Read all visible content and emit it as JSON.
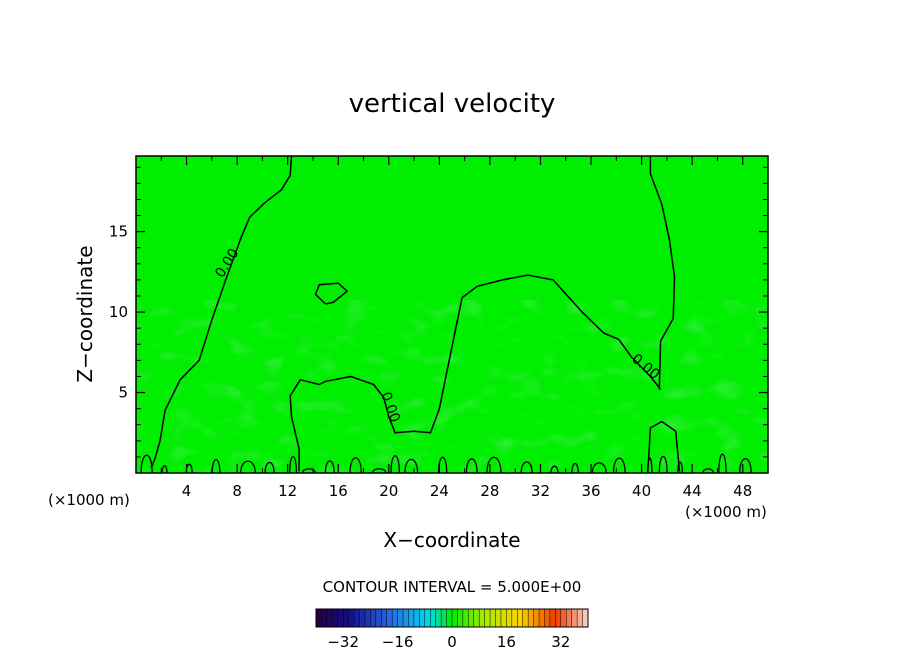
{
  "chart_data": {
    "type": "contour",
    "title": "vertical velocity",
    "xlabel": "X−coordinate",
    "ylabel": "Z−coordinate",
    "x_unit_label": "(×1000 m)",
    "x_unit_label_right": "(×1000 m)",
    "xlim": [
      0,
      50
    ],
    "ylim": [
      0,
      19.7
    ],
    "x_ticks": [
      4,
      8,
      12,
      16,
      20,
      24,
      28,
      32,
      36,
      40,
      44,
      48
    ],
    "y_ticks": [
      5,
      10,
      15
    ],
    "field_color": "#00ee00",
    "contour_levels": [
      {
        "label": "0.00",
        "paths": [
          [
            [
              12.3,
              19.7
            ],
            [
              12.2,
              18.5
            ],
            [
              11.5,
              17.6
            ],
            [
              10.2,
              16.8
            ],
            [
              9.0,
              15.9
            ],
            [
              8.3,
              14.6
            ],
            [
              7.1,
              12.0
            ],
            [
              6.0,
              9.5
            ],
            [
              5.0,
              7.0
            ],
            [
              3.5,
              5.8
            ],
            [
              2.3,
              3.9
            ],
            [
              1.9,
              2.0
            ],
            [
              1.5,
              0.9
            ],
            [
              1.2,
              0.3
            ]
          ],
          [
            [
              15.0,
              10.5
            ],
            [
              14.2,
              11.1
            ],
            [
              14.5,
              11.7
            ],
            [
              16.0,
              11.8
            ],
            [
              16.7,
              11.3
            ],
            [
              15.6,
              10.6
            ],
            [
              15.0,
              10.5
            ]
          ],
          [
            [
              12.9,
              0.1
            ],
            [
              12.9,
              1.5
            ],
            [
              12.3,
              3.5
            ],
            [
              12.2,
              4.8
            ],
            [
              13.0,
              5.8
            ],
            [
              14.5,
              5.5
            ],
            [
              15.0,
              5.7
            ],
            [
              17.0,
              6.0
            ],
            [
              18.8,
              5.5
            ],
            [
              19.6,
              4.7
            ],
            [
              20.0,
              3.5
            ],
            [
              20.5,
              2.5
            ],
            [
              22.0,
              2.6
            ],
            [
              23.3,
              2.5
            ],
            [
              24.0,
              4.0
            ],
            [
              24.6,
              6.3
            ],
            [
              25.3,
              9.0
            ],
            [
              25.8,
              10.9
            ],
            [
              27.0,
              11.6
            ],
            [
              29.0,
              12.0
            ],
            [
              31.0,
              12.3
            ],
            [
              33.0,
              12.0
            ],
            [
              35.3,
              10.0
            ],
            [
              37.0,
              8.7
            ],
            [
              38.2,
              8.3
            ],
            [
              39.2,
              7.2
            ],
            [
              40.7,
              6.0
            ],
            [
              41.5,
              5.2
            ]
          ],
          [
            [
              40.7,
              19.7
            ],
            [
              40.7,
              18.6
            ],
            [
              41.6,
              16.7
            ],
            [
              42.2,
              14.5
            ],
            [
              42.6,
              12.2
            ],
            [
              42.5,
              9.6
            ],
            [
              41.5,
              8.2
            ],
            [
              41.4,
              5.2
            ]
          ],
          [
            [
              40.5,
              0.1
            ],
            [
              40.7,
              2.8
            ],
            [
              41.6,
              3.2
            ],
            [
              42.7,
              2.6
            ],
            [
              43.0,
              0.1
            ]
          ]
        ]
      }
    ],
    "colorbar": {
      "title": "CONTOUR INTERVAL = 5.000E+00",
      "tick_values": [
        -32,
        -16,
        0,
        16,
        32
      ],
      "tick_labels": [
        "−32",
        "−16",
        "0",
        "16",
        "32"
      ],
      "range": [
        -40,
        40
      ]
    }
  }
}
